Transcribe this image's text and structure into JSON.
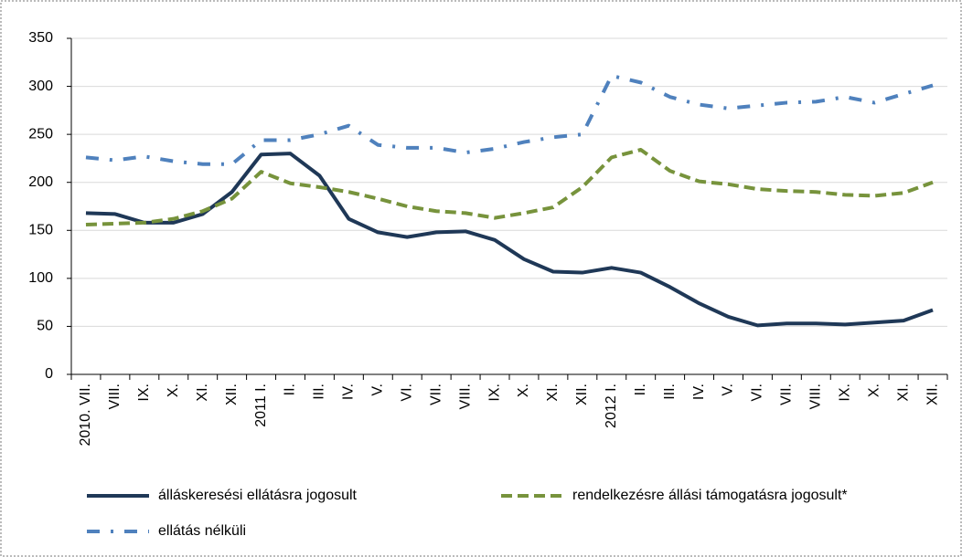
{
  "chart_data": {
    "type": "line",
    "categories": [
      "2010. VII.",
      "VIII.",
      "IX.",
      "X.",
      "XI.",
      "XII.",
      "2011 I.",
      "II.",
      "III.",
      "IV.",
      "V.",
      "VI.",
      "VII.",
      "VIII.",
      "IX.",
      "X.",
      "XI.",
      "XII.",
      "2012 I.",
      "II.",
      "III.",
      "IV.",
      "V.",
      "VI.",
      "VII.",
      "VIII.",
      "IX.",
      "X.",
      "XI.",
      "XII."
    ],
    "series": [
      {
        "name": "álláskeresési ellátásra jogosult",
        "color": "#1f3857",
        "line_style": "solid",
        "values": [
          168,
          167,
          158,
          158,
          167,
          190,
          229,
          230,
          207,
          162,
          148,
          143,
          148,
          149,
          140,
          120,
          107,
          106,
          111,
          106,
          91,
          74,
          60,
          51,
          53,
          53,
          52,
          54,
          56,
          67
        ]
      },
      {
        "name": "rendelkezésre állási támogatásra jogosult*",
        "color": "#77933c",
        "line_style": "dashed",
        "values": [
          156,
          157,
          158,
          162,
          170,
          183,
          211,
          199,
          195,
          190,
          183,
          175,
          170,
          168,
          163,
          168,
          174,
          195,
          226,
          234,
          212,
          201,
          198,
          193,
          191,
          190,
          187,
          186,
          189,
          200
        ]
      },
      {
        "name": "ellátás nélküli",
        "color": "#4f81bd",
        "line_style": "dashdot",
        "values": [
          226,
          223,
          227,
          222,
          219,
          219,
          244,
          244,
          250,
          259,
          239,
          236,
          236,
          231,
          235,
          242,
          247,
          250,
          311,
          304,
          289,
          281,
          277,
          280,
          283,
          284,
          289,
          283,
          292,
          301
        ]
      }
    ],
    "ylim": [
      0,
      350
    ],
    "yticks": [
      0,
      50,
      100,
      150,
      200,
      250,
      300,
      350
    ],
    "grid": true
  }
}
